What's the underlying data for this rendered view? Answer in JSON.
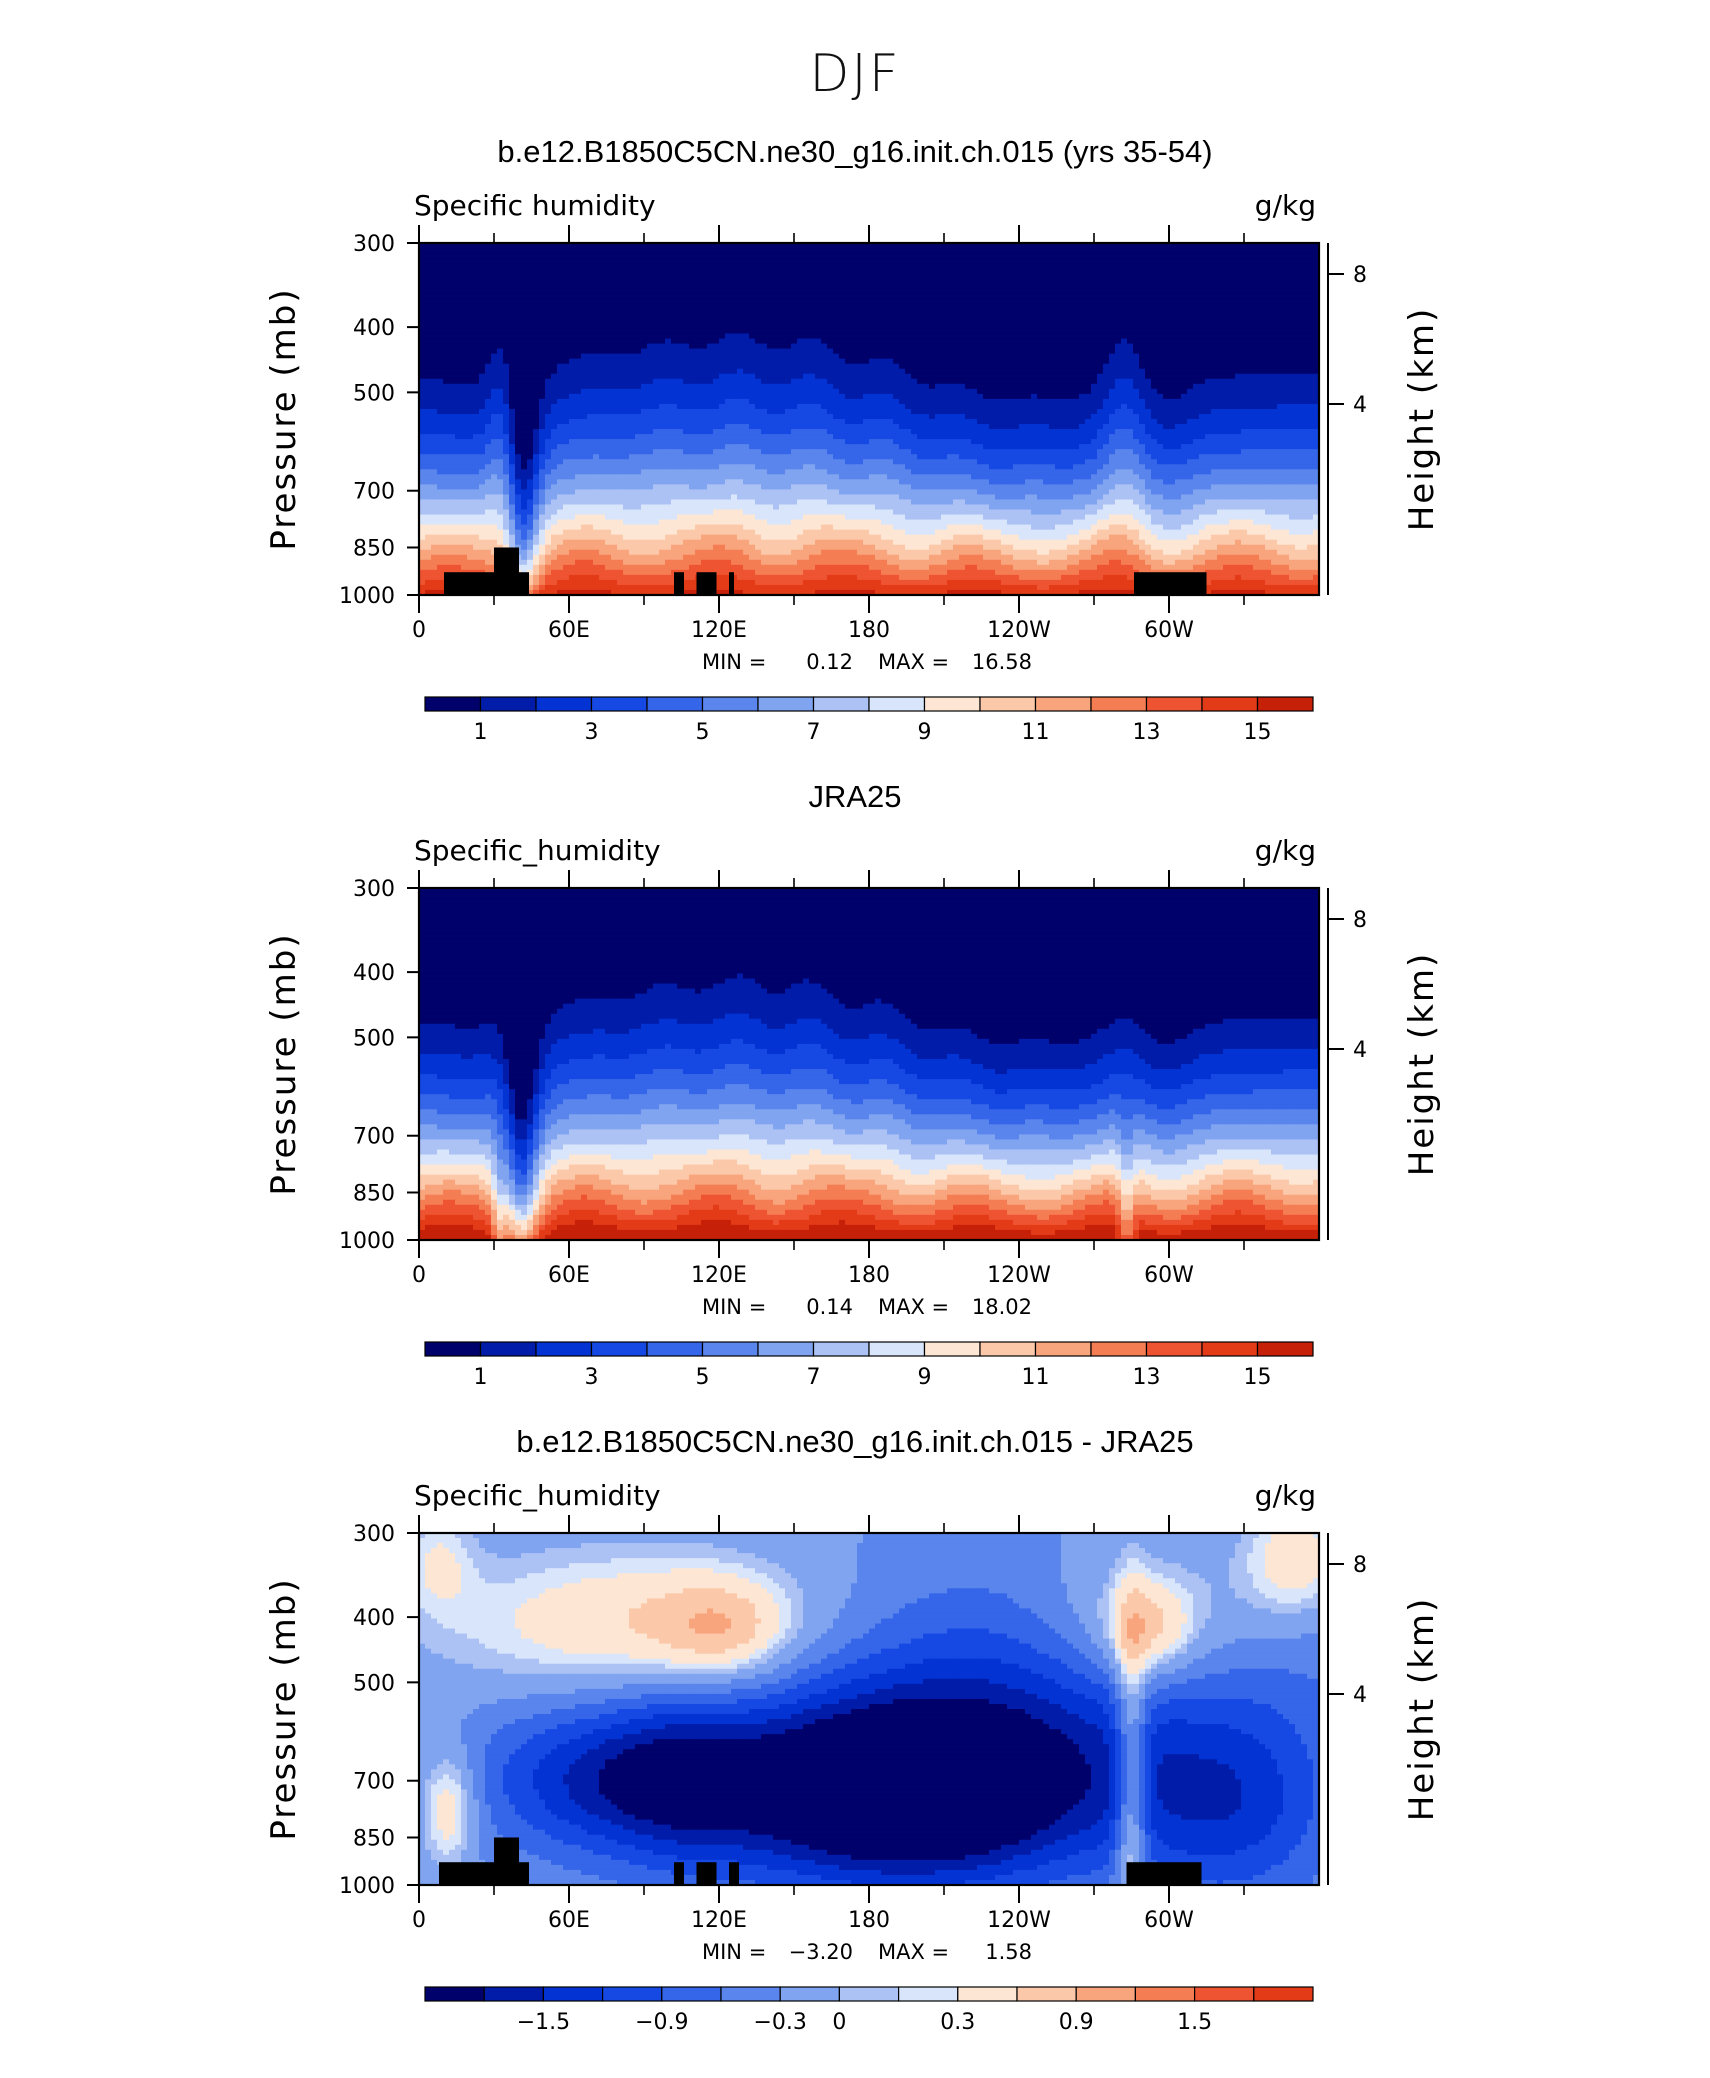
{
  "figure": {
    "title": "DJF"
  },
  "chart_data": [
    {
      "type": "contour",
      "title": "b.e12.B1850C5CN.ne30_g16.init.ch.015 (yrs 35-54)",
      "left_label": "Specific humidity",
      "right_label": "g/kg",
      "ylabel": "Pressure (mb)",
      "ylabel_right": "Height (km)",
      "x_ticks": [
        "0",
        "60E",
        "120E",
        "180",
        "120W",
        "60W"
      ],
      "y_ticks": [
        "300",
        "400",
        "500",
        "700",
        "850",
        "1000"
      ],
      "y_right_ticks": [
        "8",
        "4"
      ],
      "min_label": "MIN =",
      "min_value": "0.12",
      "max_label": "MAX =",
      "max_value": "16.58",
      "colorbar_labels": [
        "1",
        "3",
        "5",
        "7",
        "9",
        "11",
        "13",
        "15"
      ],
      "colorbar_levels": [
        1,
        2,
        3,
        4,
        5,
        6,
        7,
        8,
        9,
        10,
        11,
        12,
        13,
        14,
        15
      ],
      "surface_top": [
        {
          "x": [
            10,
            30
          ],
          "p": 925
        },
        {
          "x": [
            30,
            40
          ],
          "p": 850
        },
        {
          "x": [
            40,
            44
          ],
          "p": 925
        },
        {
          "x": [
            102,
            106
          ],
          "p": 925
        },
        {
          "x": [
            111,
            119
          ],
          "p": 925
        },
        {
          "x": [
            124,
            126
          ],
          "p": 925
        },
        {
          "x": [
            286,
            315
          ],
          "p": 925
        }
      ],
      "shape": {
        "mode": "humidity",
        "lev_surface": 15.2,
        "lev_top": 0.3,
        "drop": 0.5,
        "warm": 0
      }
    },
    {
      "type": "contour",
      "title": "JRA25",
      "left_label": "Specific_humidity",
      "right_label": "g/kg",
      "ylabel": "Pressure (mb)",
      "ylabel_right": "Height (km)",
      "x_ticks": [
        "0",
        "60E",
        "120E",
        "180",
        "120W",
        "60W"
      ],
      "y_ticks": [
        "300",
        "400",
        "500",
        "700",
        "850",
        "1000"
      ],
      "y_right_ticks": [
        "8",
        "4"
      ],
      "min_label": "MIN =",
      "min_value": "0.14",
      "max_label": "MAX =",
      "max_value": "18.02",
      "colorbar_labels": [
        "1",
        "3",
        "5",
        "7",
        "9",
        "11",
        "13",
        "15"
      ],
      "colorbar_levels": [
        1,
        2,
        3,
        4,
        5,
        6,
        7,
        8,
        9,
        10,
        11,
        12,
        13,
        14,
        15
      ],
      "surface_top": [],
      "shape": {
        "mode": "humidity",
        "lev_surface": 16.2,
        "lev_top": 0.3,
        "drop": 0.7,
        "warm": 1
      }
    },
    {
      "type": "contour",
      "title": "b.e12.B1850C5CN.ne30_g16.init.ch.015 - JRA25",
      "left_label": "Specific_humidity",
      "right_label": "g/kg",
      "ylabel": "Pressure (mb)",
      "ylabel_right": "Height (km)",
      "x_ticks": [
        "0",
        "60E",
        "120E",
        "180",
        "120W",
        "60W"
      ],
      "y_ticks": [
        "300",
        "400",
        "500",
        "700",
        "850",
        "1000"
      ],
      "y_right_ticks": [
        "8",
        "4"
      ],
      "min_label": "MIN =",
      "min_value": "−3.20",
      "max_label": "MAX =",
      "max_value": "1.58",
      "colorbar_labels": [
        "−1.5",
        "−0.9",
        "−0.3",
        "0",
        "0.3",
        "0.9",
        "1.5"
      ],
      "colorbar_levels": [
        -1.8,
        -1.5,
        -1.2,
        -0.9,
        -0.6,
        -0.3,
        0,
        0.15,
        0.3,
        0.6,
        0.9,
        1.2,
        1.5,
        1.8
      ],
      "surface_top": [
        {
          "x": [
            8,
            30
          ],
          "p": 925
        },
        {
          "x": [
            30,
            40
          ],
          "p": 850
        },
        {
          "x": [
            40,
            44
          ],
          "p": 925
        },
        {
          "x": [
            102,
            106
          ],
          "p": 925
        },
        {
          "x": [
            111,
            119
          ],
          "p": 925
        },
        {
          "x": [
            124,
            128
          ],
          "p": 925
        },
        {
          "x": [
            283,
            313
          ],
          "p": 925
        }
      ],
      "shape": {
        "mode": "difference"
      }
    }
  ],
  "colors": {
    "palette": [
      "#00016b",
      "#011ca8",
      "#0433d4",
      "#1649e4",
      "#3565e8",
      "#5985ec",
      "#80a4f0",
      "#acc2f4",
      "#d8e5fb",
      "#fde6d3",
      "#fbc9aa",
      "#f8a47c",
      "#f47d53",
      "#ee5431",
      "#e33a18",
      "#c72008",
      "#a10d04",
      "#7c0002"
    ],
    "surface": "#000000"
  }
}
